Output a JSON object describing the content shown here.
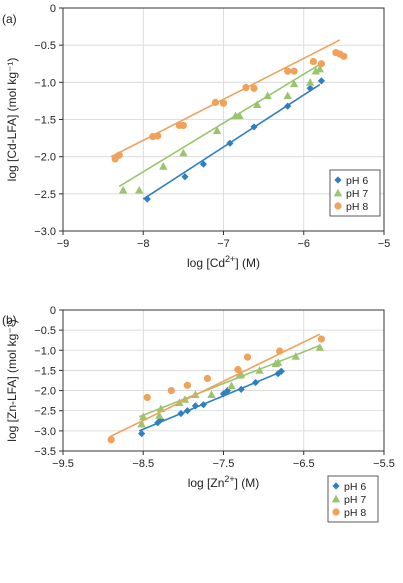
{
  "colors": {
    "pH6": "#2f7fc1",
    "pH7": "#9bc46f",
    "pH8": "#f0a15a"
  },
  "chart_data": [
    {
      "type": "scatter",
      "panel_label": "(a)",
      "xlabel_main": "log [Cd",
      "xlabel_sup": "2+",
      "xlabel_end": "] (M)",
      "ylabel": "log [Cd-LFA] (mol kg⁻¹)",
      "xlim": [
        -9,
        -5
      ],
      "ylim": [
        -3.0,
        0
      ],
      "xticks": [
        "−9",
        "−8",
        "−7",
        "−6",
        "−5"
      ],
      "xtick_values": [
        -9,
        -8,
        -7,
        -6,
        -5
      ],
      "yticks": [
        "0",
        "−0.5",
        "−1.0",
        "−1.5",
        "−2.0",
        "−2.5",
        "−3.0"
      ],
      "ytick_values": [
        0,
        -0.5,
        -1.0,
        -1.5,
        -2.0,
        -2.5,
        -3.0
      ],
      "legend_position": "bottom-right",
      "series": [
        {
          "name": "pH 6",
          "marker": "diamond",
          "color": "#2f7fc1",
          "x": [
            -7.95,
            -7.48,
            -7.25,
            -6.92,
            -6.62,
            -6.2,
            -5.92,
            -5.78
          ],
          "y": [
            -2.57,
            -2.27,
            -2.1,
            -1.82,
            -1.6,
            -1.32,
            -1.08,
            -0.98
          ],
          "fit": [
            [
              -8.0,
              -2.57
            ],
            [
              -5.8,
              -1.03
            ]
          ]
        },
        {
          "name": "pH 7",
          "marker": "triangle",
          "color": "#9bc46f",
          "x": [
            -8.25,
            -8.05,
            -7.75,
            -7.5,
            -7.08,
            -6.85,
            -6.8,
            -6.58,
            -6.45,
            -6.2,
            -6.12,
            -5.92,
            -5.85,
            -5.8
          ],
          "y": [
            -2.45,
            -2.45,
            -2.13,
            -1.95,
            -1.65,
            -1.45,
            -1.45,
            -1.3,
            -1.18,
            -1.18,
            -1.02,
            -1.0,
            -0.85,
            -0.82
          ],
          "fit": [
            [
              -8.3,
              -2.4
            ],
            [
              -5.8,
              -0.76
            ]
          ]
        },
        {
          "name": "pH 8",
          "marker": "circle",
          "color": "#f0a15a",
          "x": [
            -8.35,
            -8.3,
            -7.88,
            -7.82,
            -7.55,
            -7.5,
            -7.1,
            -7.0,
            -6.72,
            -6.62,
            -6.2,
            -6.12,
            -5.88,
            -5.78,
            -5.6,
            -5.55,
            -5.5
          ],
          "y": [
            -2.03,
            -1.98,
            -1.73,
            -1.72,
            -1.58,
            -1.58,
            -1.27,
            -1.28,
            -1.07,
            -1.08,
            -0.85,
            -0.85,
            -0.72,
            -0.75,
            -0.6,
            -0.62,
            -0.65
          ],
          "fit": [
            [
              -8.4,
              -2.0
            ],
            [
              -5.55,
              -0.43
            ]
          ]
        }
      ]
    },
    {
      "type": "scatter",
      "panel_label": "(b)",
      "xlabel_main": "log [Zn",
      "xlabel_sup": "2+",
      "xlabel_end": "] (M)",
      "ylabel": "log [Zn-LFA] (mol kg⁻¹)",
      "xlim": [
        -9.5,
        -5.5
      ],
      "ylim": [
        -3.5,
        0
      ],
      "xticks": [
        "−9.5",
        "−8.5",
        "−7.5",
        "−6.5",
        "−5.5"
      ],
      "xtick_values": [
        -9.5,
        -8.5,
        -7.5,
        -6.5,
        -5.5
      ],
      "yticks": [
        "0",
        "−0.5",
        "−1.0",
        "−1.5",
        "−2.0",
        "−2.5",
        "−3.0",
        "−3.5"
      ],
      "ytick_values": [
        0,
        -0.5,
        -1.0,
        -1.5,
        -2.0,
        -2.5,
        -3.0,
        -3.5
      ],
      "legend_position": "bottom-right",
      "series": [
        {
          "name": "pH 6",
          "marker": "diamond",
          "color": "#2f7fc1",
          "x": [
            -8.52,
            -8.32,
            -8.28,
            -8.03,
            -7.95,
            -7.85,
            -7.75,
            -7.5,
            -7.45,
            -7.28,
            -7.1,
            -6.82,
            -6.78
          ],
          "y": [
            -3.07,
            -2.8,
            -2.72,
            -2.57,
            -2.5,
            -2.38,
            -2.35,
            -2.08,
            -2.0,
            -1.97,
            -1.8,
            -1.58,
            -1.52
          ],
          "fit": [
            [
              -8.55,
              -3.0
            ],
            [
              -6.8,
              -1.55
            ]
          ]
        },
        {
          "name": "pH 7",
          "marker": "triangle",
          "color": "#9bc46f",
          "x": [
            -8.52,
            -8.5,
            -8.3,
            -8.28,
            -8.05,
            -7.98,
            -7.85,
            -7.65,
            -7.4,
            -7.3,
            -7.28,
            -7.05,
            -6.85,
            -6.82,
            -6.6,
            -6.3
          ],
          "y": [
            -2.83,
            -2.65,
            -2.62,
            -2.45,
            -2.3,
            -2.22,
            -2.1,
            -2.1,
            -1.88,
            -1.62,
            -1.6,
            -1.5,
            -1.33,
            -1.3,
            -1.15,
            -0.93
          ],
          "fit": [
            [
              -8.55,
              -2.65
            ],
            [
              -6.3,
              -0.88
            ]
          ]
        },
        {
          "name": "pH 8",
          "marker": "circle",
          "color": "#f0a15a",
          "x": [
            -8.9,
            -8.45,
            -8.15,
            -7.95,
            -7.7,
            -7.32,
            -7.2,
            -6.8,
            -6.28
          ],
          "y": [
            -3.22,
            -2.17,
            -2.0,
            -1.87,
            -1.7,
            -1.48,
            -1.17,
            -1.02,
            -0.72
          ],
          "fit": [
            [
              -8.92,
              -3.15
            ],
            [
              -6.3,
              -0.6
            ]
          ]
        }
      ]
    }
  ]
}
